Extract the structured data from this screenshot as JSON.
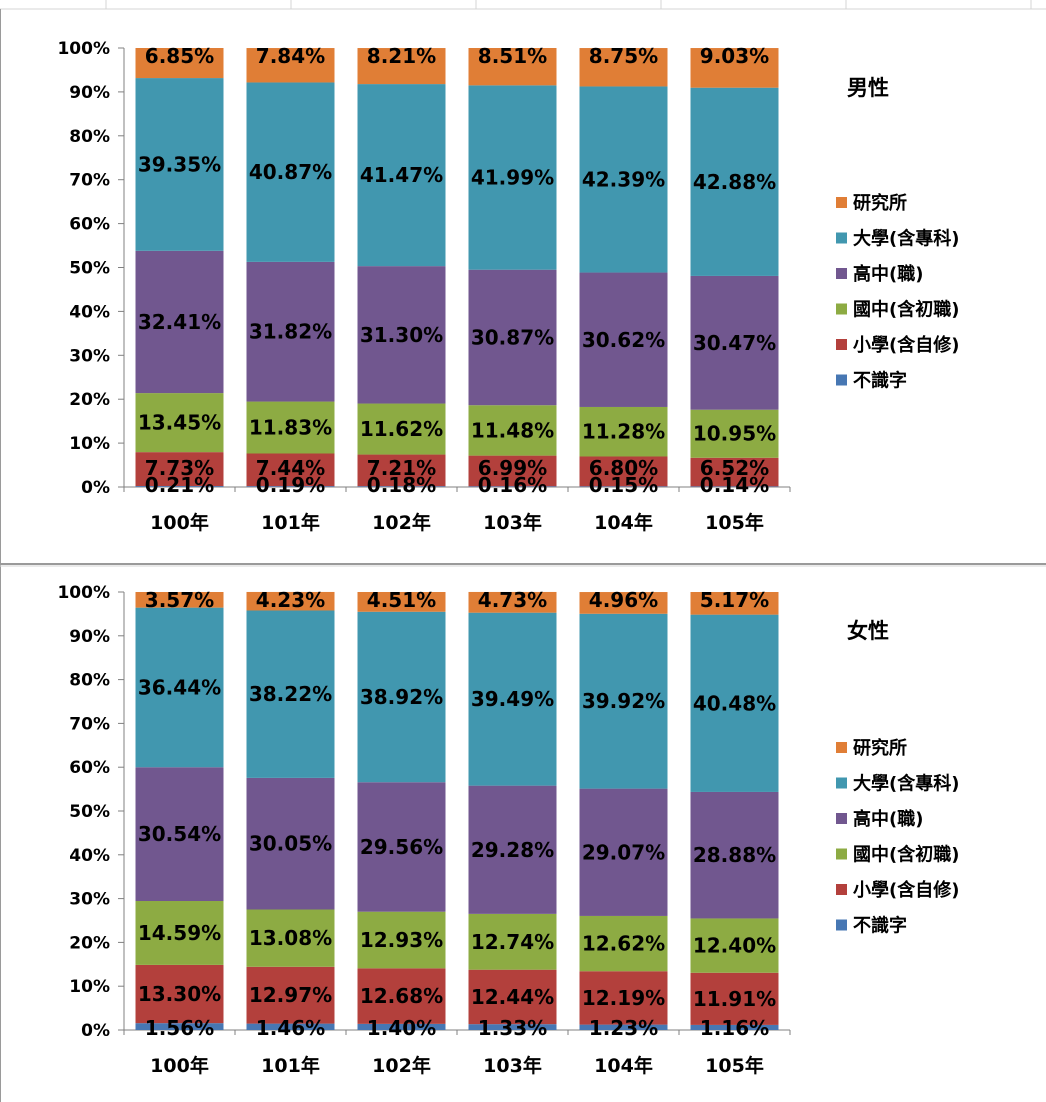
{
  "colors": {
    "研究所": "#E07E36",
    "大學(含專科)": "#4197AF",
    "高中(職)": "#71578F",
    "國中(含初職)": "#8DAB43",
    "小學(含自修)": "#B3403C",
    "不識字": "#4777B3"
  },
  "chart_data": [
    {
      "type": "bar",
      "stacked": "percent",
      "title": "男性",
      "categories": [
        "100年",
        "101年",
        "102年",
        "103年",
        "104年",
        "105年"
      ],
      "yticks": [
        "0%",
        "10%",
        "20%",
        "30%",
        "40%",
        "50%",
        "60%",
        "70%",
        "80%",
        "90%",
        "100%"
      ],
      "ylim": [
        0,
        100
      ],
      "legend_position": "right",
      "series": [
        {
          "name": "不識字",
          "values": [
            0.21,
            0.19,
            0.18,
            0.16,
            0.15,
            0.14
          ],
          "labels": [
            "0.21%",
            "0.19%",
            "0.18%",
            "0.16%",
            "0.15%",
            "0.14%"
          ]
        },
        {
          "name": "小學(含自修)",
          "values": [
            7.73,
            7.44,
            7.21,
            6.99,
            6.8,
            6.52
          ],
          "labels": [
            "7.73%",
            "7.44%",
            "7.21%",
            "6.99%",
            "6.80%",
            "6.52%"
          ]
        },
        {
          "name": "國中(含初職)",
          "values": [
            13.45,
            11.83,
            11.62,
            11.48,
            11.28,
            10.95
          ],
          "labels": [
            "13.45%",
            "11.83%",
            "11.62%",
            "11.48%",
            "11.28%",
            "10.95%"
          ]
        },
        {
          "name": "高中(職)",
          "values": [
            32.41,
            31.82,
            31.3,
            30.87,
            30.62,
            30.47
          ],
          "labels": [
            "32.41%",
            "31.82%",
            "31.30%",
            "30.87%",
            "30.62%",
            "30.47%"
          ]
        },
        {
          "name": "大學(含專科)",
          "values": [
            39.35,
            40.87,
            41.47,
            41.99,
            42.39,
            42.88
          ],
          "labels": [
            "39.35%",
            "40.87%",
            "41.47%",
            "41.99%",
            "42.39%",
            "42.88%"
          ]
        },
        {
          "name": "研究所",
          "values": [
            6.85,
            7.84,
            8.21,
            8.51,
            8.75,
            9.03
          ],
          "labels": [
            "6.85%",
            "7.84%",
            "8.21%",
            "8.51%",
            "8.75%",
            "9.03%"
          ]
        }
      ]
    },
    {
      "type": "bar",
      "stacked": "percent",
      "title": "女性",
      "categories": [
        "100年",
        "101年",
        "102年",
        "103年",
        "104年",
        "105年"
      ],
      "yticks": [
        "0%",
        "10%",
        "20%",
        "30%",
        "40%",
        "50%",
        "60%",
        "70%",
        "80%",
        "90%",
        "100%"
      ],
      "ylim": [
        0,
        100
      ],
      "legend_position": "right",
      "series": [
        {
          "name": "不識字",
          "values": [
            1.56,
            1.46,
            1.4,
            1.33,
            1.23,
            1.16
          ],
          "labels": [
            "1.56%",
            "1.46%",
            "1.40%",
            "1.33%",
            "1.23%",
            "1.16%"
          ]
        },
        {
          "name": "小學(含自修)",
          "values": [
            13.3,
            12.97,
            12.68,
            12.44,
            12.19,
            11.91
          ],
          "labels": [
            "13.30%",
            "12.97%",
            "12.68%",
            "12.44%",
            "12.19%",
            "11.91%"
          ]
        },
        {
          "name": "國中(含初職)",
          "values": [
            14.59,
            13.08,
            12.93,
            12.74,
            12.62,
            12.4
          ],
          "labels": [
            "14.59%",
            "13.08%",
            "12.93%",
            "12.74%",
            "12.62%",
            "12.40%"
          ]
        },
        {
          "name": "高中(職)",
          "values": [
            30.54,
            30.05,
            29.56,
            29.28,
            29.07,
            28.88
          ],
          "labels": [
            "30.54%",
            "30.05%",
            "29.56%",
            "29.28%",
            "29.07%",
            "28.88%"
          ]
        },
        {
          "name": "大學(含專科)",
          "values": [
            36.44,
            38.22,
            38.92,
            39.49,
            39.92,
            40.48
          ],
          "labels": [
            "36.44%",
            "38.22%",
            "38.92%",
            "39.49%",
            "39.92%",
            "40.48%"
          ]
        },
        {
          "name": "研究所",
          "values": [
            3.57,
            4.23,
            4.51,
            4.73,
            4.96,
            5.17
          ],
          "labels": [
            "3.57%",
            "4.23%",
            "4.51%",
            "4.73%",
            "4.96%",
            "5.17%"
          ]
        }
      ]
    }
  ]
}
